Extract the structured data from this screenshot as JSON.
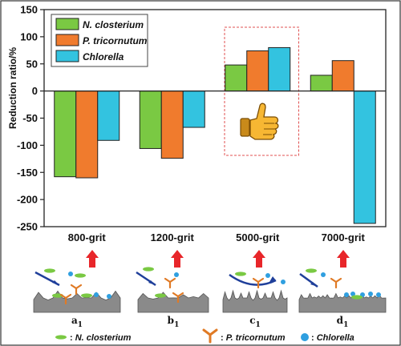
{
  "chart_data": {
    "type": "bar",
    "categories": [
      "800-grit",
      "1200-grit",
      "5000-grit",
      "7000-grit"
    ],
    "series": [
      {
        "name": "N. closterium",
        "values": [
          -158,
          -106,
          48,
          29
        ],
        "color": "#7ac943"
      },
      {
        "name": "P. tricornutum",
        "values": [
          -160,
          -124,
          74,
          56
        ],
        "color": "#f07b2d"
      },
      {
        "name": "Chlorella",
        "values": [
          -91,
          -67,
          80,
          -244
        ],
        "color": "#33c3e0"
      }
    ],
    "title": "",
    "xlabel": "",
    "ylabel": "Reduction ratio/%",
    "ylim": [
      -250,
      150
    ],
    "yticks": [
      -250,
      -200,
      -150,
      -100,
      -50,
      0,
      50,
      100,
      150
    ],
    "legend_position": "top-left",
    "highlight_category": "5000-grit",
    "highlight_icon": "thumbs-up-icon"
  },
  "schematic": {
    "panels": [
      {
        "label": "a",
        "subscript": "1"
      },
      {
        "label": "b",
        "subscript": "1"
      },
      {
        "label": "c",
        "subscript": "1"
      },
      {
        "label": "d",
        "subscript": "1"
      }
    ],
    "arrow_icon": "red-up-arrow-icon",
    "legend": [
      {
        "icon": "green-ellipse-icon",
        "color": "#7ac943",
        "prefix": ": ",
        "label": "N. closterium"
      },
      {
        "icon": "orange-tripod-icon",
        "color": "#e07a25",
        "prefix": ": ",
        "label": "P. tricornutum"
      },
      {
        "icon": "blue-circle-icon",
        "color": "#2f9fe0",
        "prefix": ": ",
        "label": "Chlorella"
      }
    ]
  }
}
